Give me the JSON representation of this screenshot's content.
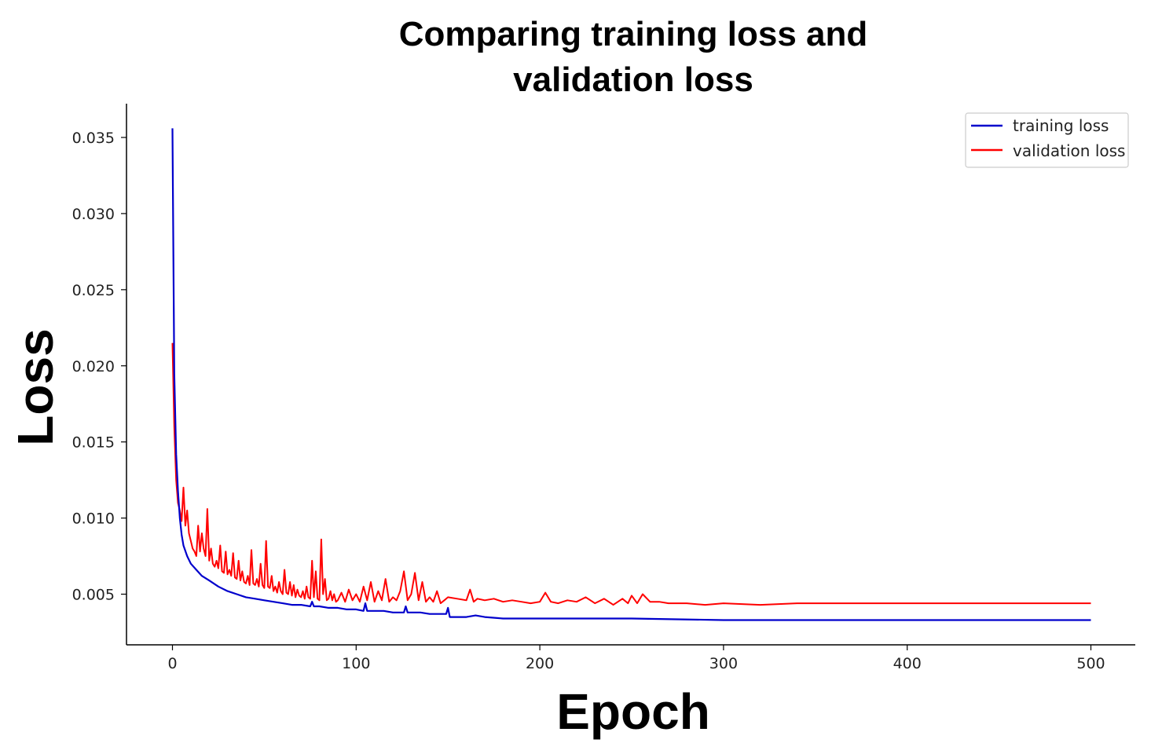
{
  "chart_data": {
    "type": "line",
    "title_line1": "Comparing training loss and",
    "title_line2": "validation loss",
    "xlabel": "Epoch",
    "ylabel": "Loss",
    "xlim": [
      -25,
      525
    ],
    "ylim": [
      0.0015,
      0.0375
    ],
    "xticks": [
      0,
      100,
      200,
      300,
      400,
      500
    ],
    "xtick_labels": [
      "0",
      "100",
      "200",
      "300",
      "400",
      "500"
    ],
    "yticks": [
      0.005,
      0.01,
      0.015,
      0.02,
      0.025,
      0.03,
      0.035
    ],
    "ytick_labels": [
      "0.005",
      "0.010",
      "0.015",
      "0.020",
      "0.025",
      "0.030",
      "0.035"
    ],
    "grid": false,
    "legend_position": "top-right",
    "series": [
      {
        "name": "training loss",
        "color": "#0000cc",
        "x": [
          0,
          1,
          2,
          3,
          4,
          5,
          6,
          8,
          10,
          13,
          16,
          20,
          25,
          30,
          35,
          40,
          45,
          50,
          55,
          60,
          65,
          70,
          75,
          76,
          77,
          80,
          85,
          90,
          95,
          100,
          104,
          105,
          106,
          110,
          115,
          120,
          126,
          127,
          128,
          130,
          135,
          140,
          145,
          149,
          150,
          151,
          155,
          160,
          165,
          170,
          180,
          200,
          250,
          300,
          350,
          400,
          450,
          500
        ],
        "y": [
          0.0356,
          0.0195,
          0.0142,
          0.0118,
          0.01,
          0.0089,
          0.0082,
          0.0075,
          0.007,
          0.0066,
          0.0062,
          0.0059,
          0.0055,
          0.0052,
          0.005,
          0.0048,
          0.0047,
          0.0046,
          0.0045,
          0.0044,
          0.0043,
          0.0043,
          0.0042,
          0.0045,
          0.0042,
          0.0042,
          0.0041,
          0.0041,
          0.004,
          0.004,
          0.0039,
          0.0044,
          0.0039,
          0.0039,
          0.0039,
          0.0038,
          0.0038,
          0.0042,
          0.0038,
          0.0038,
          0.0038,
          0.0037,
          0.0037,
          0.0037,
          0.0041,
          0.0035,
          0.0035,
          0.0035,
          0.0036,
          0.0035,
          0.0034,
          0.0034,
          0.0034,
          0.0033,
          0.0033,
          0.0033,
          0.0033,
          0.0033
        ]
      },
      {
        "name": "validation loss",
        "color": "#ff0000",
        "x": [
          0,
          1,
          2,
          3,
          4,
          5,
          6,
          7,
          8,
          9,
          10,
          11,
          12,
          13,
          14,
          15,
          16,
          17,
          18,
          19,
          20,
          21,
          22,
          23,
          24,
          25,
          26,
          27,
          28,
          29,
          30,
          31,
          32,
          33,
          34,
          35,
          36,
          37,
          38,
          39,
          40,
          41,
          42,
          43,
          44,
          45,
          46,
          47,
          48,
          49,
          50,
          51,
          52,
          53,
          54,
          55,
          56,
          57,
          58,
          59,
          60,
          61,
          62,
          63,
          64,
          65,
          66,
          67,
          68,
          69,
          70,
          71,
          72,
          73,
          74,
          75,
          76,
          77,
          78,
          79,
          80,
          81,
          82,
          83,
          84,
          85,
          86,
          87,
          88,
          89,
          90,
          92,
          94,
          96,
          98,
          100,
          102,
          104,
          106,
          108,
          110,
          112,
          114,
          116,
          118,
          120,
          122,
          124,
          126,
          128,
          130,
          132,
          134,
          136,
          138,
          140,
          142,
          144,
          146,
          148,
          150,
          155,
          160,
          162,
          164,
          166,
          170,
          175,
          180,
          185,
          190,
          195,
          200,
          203,
          206,
          210,
          215,
          220,
          225,
          230,
          235,
          240,
          245,
          248,
          250,
          253,
          256,
          260,
          265,
          270,
          280,
          290,
          300,
          320,
          340,
          360,
          380,
          400,
          420,
          440,
          460,
          480,
          500
        ],
        "y": [
          0.0215,
          0.016,
          0.0125,
          0.011,
          0.0105,
          0.0098,
          0.012,
          0.0095,
          0.0105,
          0.009,
          0.0085,
          0.008,
          0.0078,
          0.0075,
          0.0095,
          0.0078,
          0.009,
          0.008,
          0.0075,
          0.0106,
          0.0072,
          0.008,
          0.007,
          0.0068,
          0.0072,
          0.0067,
          0.0082,
          0.0065,
          0.0064,
          0.0078,
          0.0063,
          0.0066,
          0.0062,
          0.0077,
          0.0061,
          0.006,
          0.0072,
          0.0059,
          0.0065,
          0.0058,
          0.0057,
          0.0062,
          0.0056,
          0.0079,
          0.0057,
          0.0056,
          0.006,
          0.0055,
          0.007,
          0.0056,
          0.0054,
          0.0085,
          0.0055,
          0.0054,
          0.0062,
          0.0052,
          0.0055,
          0.0051,
          0.0058,
          0.0052,
          0.005,
          0.0066,
          0.0051,
          0.005,
          0.0058,
          0.0049,
          0.0056,
          0.0048,
          0.0053,
          0.0049,
          0.0048,
          0.0052,
          0.0047,
          0.0055,
          0.0048,
          0.0047,
          0.0072,
          0.0048,
          0.0065,
          0.0047,
          0.0046,
          0.0086,
          0.005,
          0.006,
          0.0046,
          0.0047,
          0.0052,
          0.0046,
          0.005,
          0.0045,
          0.0046,
          0.0051,
          0.0045,
          0.0053,
          0.0046,
          0.005,
          0.0045,
          0.0055,
          0.0046,
          0.0058,
          0.0045,
          0.0052,
          0.0046,
          0.006,
          0.0045,
          0.0048,
          0.0046,
          0.0052,
          0.0065,
          0.0046,
          0.005,
          0.0064,
          0.0046,
          0.0058,
          0.0045,
          0.0048,
          0.0045,
          0.0052,
          0.0044,
          0.0046,
          0.0048,
          0.0047,
          0.0046,
          0.0053,
          0.0045,
          0.0047,
          0.0046,
          0.0047,
          0.0045,
          0.0046,
          0.0045,
          0.0044,
          0.0045,
          0.0051,
          0.0045,
          0.0044,
          0.0046,
          0.0045,
          0.0048,
          0.0044,
          0.0047,
          0.0043,
          0.0047,
          0.0044,
          0.0049,
          0.0044,
          0.005,
          0.0045,
          0.0045,
          0.0044,
          0.0044,
          0.0043,
          0.0044,
          0.0043,
          0.0044,
          0.0044,
          0.0044,
          0.0044,
          0.0044,
          0.0044,
          0.0044,
          0.0044,
          0.0044
        ]
      }
    ]
  }
}
